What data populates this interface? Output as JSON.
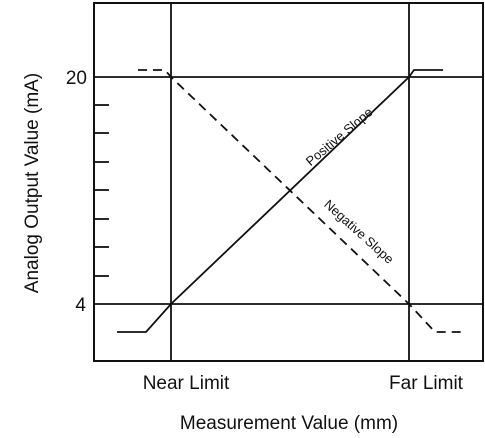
{
  "diagram": {
    "x_axis_label": "Measurement Value (mm)",
    "y_axis_label": "Analog Output Value (mA)",
    "x_ticks": [
      "Near Limit",
      "Far Limit"
    ],
    "y_ticks": [
      "20",
      "4"
    ],
    "positive_slope_label": "Positive Slope",
    "negative_slope_label": "Negative Slope",
    "colors": {
      "line": "#111111",
      "background": "#ffffff"
    }
  }
}
